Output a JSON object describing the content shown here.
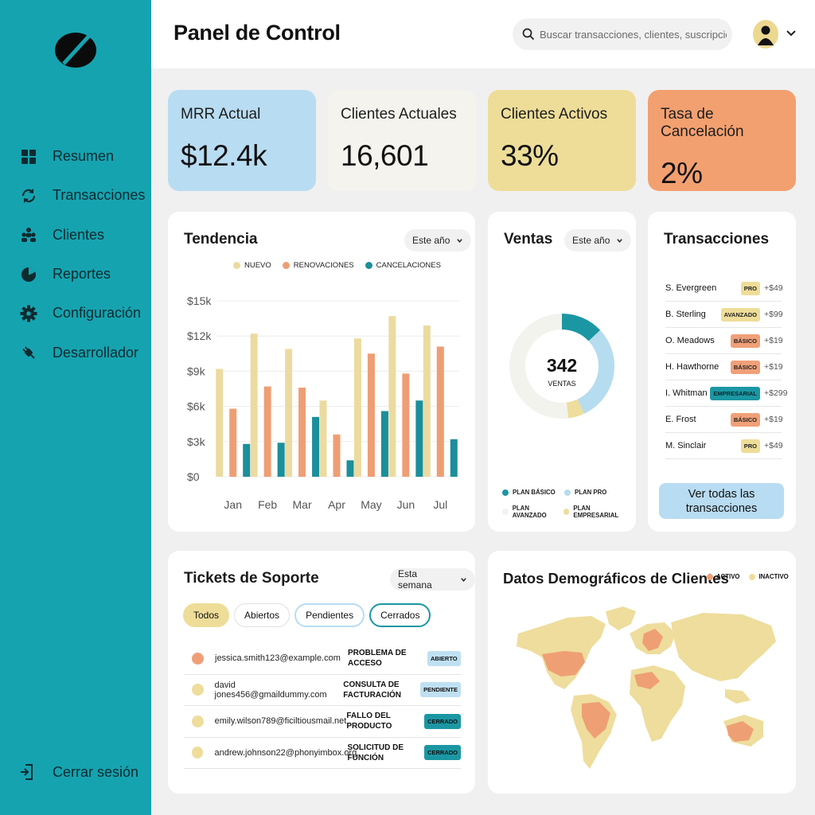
{
  "sidebar": {
    "items": [
      {
        "label": "Resumen",
        "icon": "grid-icon"
      },
      {
        "label": "Transacciones",
        "icon": "refresh-icon"
      },
      {
        "label": "Clientes",
        "icon": "users-icon"
      },
      {
        "label": "Reportes",
        "icon": "pie-chart-icon"
      },
      {
        "label": "Configuración",
        "icon": "gear-icon"
      },
      {
        "label": "Desarrollador",
        "icon": "plug-icon"
      }
    ],
    "logout_label": "Cerrar sesión"
  },
  "header": {
    "title": "Panel de Control",
    "search_placeholder": "Buscar transacciones, clientes, suscripciones"
  },
  "kpis": [
    {
      "label": "MRR Actual",
      "value": "$12.4k",
      "color": "#b8dcf2"
    },
    {
      "label": "Clientes Actuales",
      "value": "16,601",
      "color": "#f4f3ee"
    },
    {
      "label": "Clientes Activos",
      "value": "33%",
      "color": "#eedd98"
    },
    {
      "label": "Tasa de Cancelación",
      "value": "2%",
      "color": "#f3a070"
    }
  ],
  "trend": {
    "title": "Tendencia",
    "period": "Este año",
    "legend": [
      "NUEVO",
      "RENOVACIONES",
      "CANCELACIONES"
    ]
  },
  "chart_data": {
    "type": "bar",
    "categories": [
      "Jan",
      "Feb",
      "Mar",
      "Apr",
      "May",
      "Jun",
      "Jul"
    ],
    "series": [
      {
        "name": "NUEVO",
        "values": [
          9200,
          12200,
          10900,
          6500,
          11800,
          13700,
          12900
        ],
        "color": "#ecdba0"
      },
      {
        "name": "RENOVACIONES",
        "values": [
          5800,
          7700,
          7600,
          3600,
          10500,
          8800,
          11100
        ],
        "color": "#ee9e74"
      },
      {
        "name": "CANCELACIONES",
        "values": [
          2800,
          2900,
          5100,
          1400,
          5600,
          6500,
          3200
        ],
        "color": "#1b8f9b"
      }
    ],
    "yticks": [
      "$15k",
      "$12k",
      "$9k",
      "$6k",
      "$3k",
      "$0"
    ],
    "ylim": [
      0,
      15000
    ]
  },
  "sales": {
    "title": "Ventas",
    "period": "Este año",
    "total": "342",
    "total_label": "VENTAS",
    "legend": [
      {
        "label": "PLAN BÁSICO",
        "color": "#1b97a3"
      },
      {
        "label": "PLAN PRO",
        "color": "#b6dcf0"
      },
      {
        "label": "PLAN AVANZADO",
        "color": "#f3f3ee"
      },
      {
        "label": "PLAN EMPRESARIAL",
        "color": "#eedd9c"
      }
    ],
    "segments": [
      {
        "name": "PLAN BÁSICO",
        "value": 0.13,
        "color": "#1b97a3"
      },
      {
        "name": "PLAN PRO",
        "value": 0.3,
        "color": "#b6dcf0"
      },
      {
        "name": "PLAN EMPRESARIAL",
        "value": 0.05,
        "color": "#eedd9c"
      },
      {
        "name": "PLAN AVANZADO",
        "value": 0.52,
        "color": "#f3f3ee"
      }
    ]
  },
  "transactions": {
    "title": "Transacciones",
    "rows": [
      {
        "name": "S. Evergreen",
        "plan": "PRO",
        "amount": "+$49",
        "color": "#eedd98"
      },
      {
        "name": "B. Sterling",
        "plan": "AVANZADO",
        "amount": "+$99",
        "color": "#eedd98"
      },
      {
        "name": "O. Meadows",
        "plan": "BÁSICO",
        "amount": "+$19",
        "color": "#f0a078"
      },
      {
        "name": "H. Hawthorne",
        "plan": "BÁSICO",
        "amount": "+$19",
        "color": "#f0a078"
      },
      {
        "name": "I. Whitman",
        "plan": "EMPRESARIAL",
        "amount": "+$299",
        "color": "#1b97a3"
      },
      {
        "name": "E. Frost",
        "plan": "BÁSICO",
        "amount": "+$19",
        "color": "#f0a078"
      },
      {
        "name": "M. Sinclair",
        "plan": "PRO",
        "amount": "+$49",
        "color": "#eedd98"
      }
    ],
    "view_all": "Ver todas las transacciones"
  },
  "support": {
    "title": "Tickets de Soporte",
    "period": "Esta semana",
    "filters": [
      "Todos",
      "Abiertos",
      "Pendientes",
      "Cerrados"
    ],
    "tickets": [
      {
        "email": "jessica.smith123@example.com",
        "issue": "PROBLEMA DE ACCESO",
        "status": "ABIERTO",
        "dot": "#ef9f78",
        "badge": "#bfe0f2"
      },
      {
        "email": "david jones456@gmaildummy.com",
        "issue": "CONSULTA DE FACTURACIÓN",
        "status": "PENDIENTE",
        "dot": "#eedd9c",
        "badge": "#bfe0f2"
      },
      {
        "email": "emily.wilson789@ficiltiousmail.net",
        "issue": "FALLO DEL PRODUCTO",
        "status": "CERRADO",
        "dot": "#eedd9c",
        "badge": "#1b97a3"
      },
      {
        "email": "andrew.johnson22@phonyimbox.org",
        "issue": "SOLICITUD DE FUNCIÓN",
        "status": "CERRADO",
        "dot": "#eedd9c",
        "badge": "#1b97a3"
      }
    ]
  },
  "demographics": {
    "title": "Datos Demográficos de Clientes",
    "legend": [
      {
        "label": "ACTIVO",
        "color": "#ef9f74"
      },
      {
        "label": "INACTIVO",
        "color": "#eedd9c"
      }
    ]
  }
}
